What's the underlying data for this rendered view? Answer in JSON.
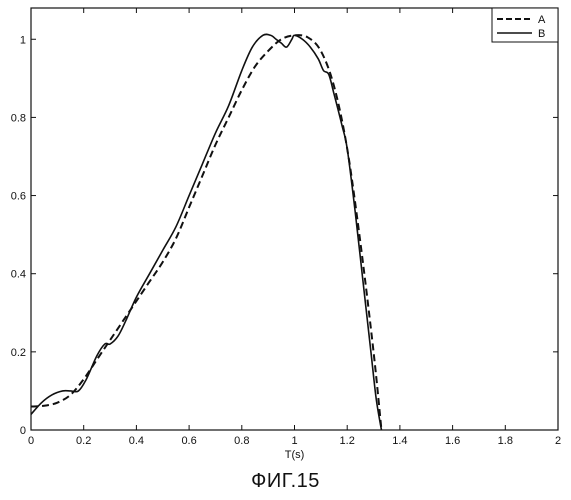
{
  "caption": "ФИГ.15",
  "chart_data": {
    "type": "line",
    "title": "",
    "xlabel": "T(s)",
    "ylabel": "",
    "xlim": [
      0,
      2
    ],
    "ylim": [
      0,
      1.08
    ],
    "xticks": [
      0,
      0.2,
      0.4,
      0.6,
      0.8,
      1,
      1.2,
      1.4,
      1.6,
      1.8,
      2
    ],
    "xtick_labels": [
      "0",
      "0.2",
      "0.4",
      "0.6",
      "0.8",
      "1",
      "1.2",
      "1.4",
      "1.6",
      "1.8",
      "2"
    ],
    "yticks": [
      0,
      0.2,
      0.4,
      0.6,
      0.8,
      1
    ],
    "ytick_labels": [
      "0",
      "0.2",
      "0.4",
      "0.6",
      "0.8",
      "1"
    ],
    "grid": false,
    "legend": "top-right",
    "series": [
      {
        "name": "A",
        "style": "dashed",
        "color": "#111111",
        "x": [
          0,
          0.05,
          0.1,
          0.15,
          0.2,
          0.25,
          0.3,
          0.35,
          0.4,
          0.45,
          0.5,
          0.55,
          0.6,
          0.65,
          0.7,
          0.75,
          0.8,
          0.85,
          0.9,
          0.95,
          1.0,
          1.05,
          1.1,
          1.15,
          1.2,
          1.25,
          1.3,
          1.33
        ],
        "y": [
          0.06,
          0.062,
          0.07,
          0.09,
          0.13,
          0.18,
          0.23,
          0.28,
          0.33,
          0.38,
          0.43,
          0.49,
          0.57,
          0.65,
          0.73,
          0.8,
          0.87,
          0.93,
          0.97,
          1.0,
          1.01,
          1.005,
          0.97,
          0.88,
          0.72,
          0.48,
          0.2,
          0.0
        ]
      },
      {
        "name": "B",
        "style": "solid",
        "color": "#111111",
        "x": [
          0,
          0.04,
          0.08,
          0.12,
          0.15,
          0.18,
          0.21,
          0.25,
          0.28,
          0.3,
          0.33,
          0.36,
          0.4,
          0.45,
          0.5,
          0.55,
          0.6,
          0.65,
          0.7,
          0.75,
          0.8,
          0.84,
          0.88,
          0.91,
          0.93,
          0.95,
          0.97,
          0.99,
          1.0,
          1.03,
          1.06,
          1.09,
          1.11,
          1.13,
          1.15,
          1.18,
          1.2,
          1.23,
          1.26,
          1.29,
          1.31,
          1.33
        ],
        "y": [
          0.04,
          0.07,
          0.09,
          0.1,
          0.1,
          0.1,
          0.13,
          0.19,
          0.22,
          0.22,
          0.24,
          0.28,
          0.34,
          0.4,
          0.46,
          0.52,
          0.6,
          0.68,
          0.76,
          0.83,
          0.92,
          0.98,
          1.01,
          1.01,
          1.0,
          0.99,
          0.98,
          1.0,
          1.01,
          1.0,
          0.98,
          0.95,
          0.92,
          0.91,
          0.86,
          0.78,
          0.72,
          0.56,
          0.38,
          0.2,
          0.08,
          0.0
        ]
      }
    ]
  }
}
